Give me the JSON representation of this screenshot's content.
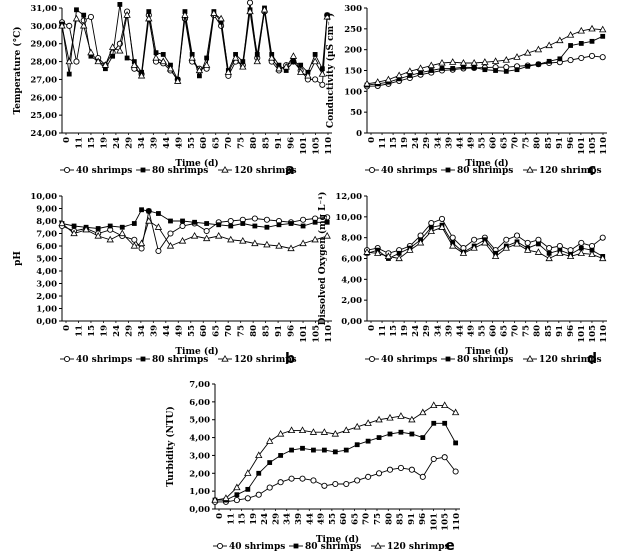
{
  "chart_data": [
    {
      "id": "a",
      "type": "line",
      "panel_label": "a",
      "xlabel": "Time (d)",
      "ylabel": "Temperature (°C)",
      "ylim": [
        24,
        31
      ],
      "ystep": 1,
      "ydecimals": 2,
      "xlim": [
        0,
        112
      ],
      "xticks": [
        "0",
        "11",
        "15",
        "19",
        "24",
        "29",
        "34",
        "39",
        "44",
        "49",
        "55",
        "60",
        "65",
        "70",
        "75",
        "80",
        "85",
        "91",
        "96",
        "101",
        "105",
        "110"
      ],
      "legend": [
        "40 shrimps",
        "80 shrimps",
        "120 shrimps"
      ],
      "series": [
        {
          "name": "40 shrimps",
          "marker": "circle",
          "x": [
            0,
            3,
            6,
            9,
            12,
            15,
            18,
            21,
            24,
            27,
            30,
            33,
            36,
            39,
            42,
            45,
            48,
            51,
            54,
            57,
            60,
            63,
            66,
            69,
            72,
            75,
            78,
            81,
            84,
            87,
            90,
            93,
            96,
            99,
            102,
            105,
            108,
            110
          ],
          "y": [
            30.2,
            30.0,
            28.0,
            30.3,
            30.5,
            28.2,
            27.8,
            28.5,
            29.0,
            30.8,
            27.6,
            27.3,
            30.6,
            28.0,
            27.9,
            27.5,
            27.0,
            30.4,
            28.0,
            27.6,
            27.6,
            30.6,
            30.0,
            27.2,
            28.0,
            27.8,
            31.3,
            28.2,
            30.8,
            28.0,
            27.5,
            27.8,
            28.0,
            27.5,
            27.0,
            27.0,
            26.7,
            30.6
          ]
        },
        {
          "name": "80 shrimps",
          "marker": "square",
          "x": [
            0,
            3,
            6,
            9,
            12,
            15,
            18,
            21,
            24,
            27,
            30,
            33,
            36,
            39,
            42,
            45,
            48,
            51,
            54,
            57,
            60,
            63,
            66,
            69,
            72,
            75,
            78,
            81,
            84,
            87,
            90,
            93,
            96,
            99,
            102,
            105,
            108,
            110
          ],
          "y": [
            30.1,
            27.3,
            30.9,
            30.6,
            28.3,
            28.0,
            27.6,
            28.3,
            31.2,
            28.2,
            28.0,
            27.4,
            30.8,
            28.5,
            28.4,
            27.8,
            27.0,
            30.8,
            28.4,
            27.2,
            28.2,
            30.8,
            30.2,
            27.5,
            28.4,
            28.0,
            30.9,
            28.4,
            31.0,
            28.4,
            27.8,
            27.5,
            28.0,
            27.8,
            27.4,
            28.4,
            27.6,
            30.6
          ]
        },
        {
          "name": "120 shrimps",
          "marker": "triangle",
          "x": [
            0,
            3,
            6,
            9,
            12,
            15,
            18,
            21,
            24,
            27,
            30,
            33,
            36,
            39,
            42,
            45,
            48,
            51,
            54,
            57,
            60,
            63,
            66,
            69,
            72,
            75,
            78,
            81,
            84,
            87,
            90,
            93,
            96,
            99,
            102,
            105,
            108,
            110
          ],
          "y": [
            30.0,
            28.0,
            30.4,
            30.0,
            28.5,
            28.0,
            27.8,
            28.8,
            28.6,
            30.6,
            27.8,
            27.2,
            30.4,
            28.2,
            28.0,
            27.6,
            26.9,
            30.6,
            28.2,
            27.5,
            27.8,
            30.7,
            30.4,
            27.4,
            28.2,
            27.7,
            30.8,
            28.0,
            30.9,
            28.2,
            27.6,
            27.7,
            28.3,
            27.4,
            27.2,
            28.0,
            27.3,
            30.5
          ]
        }
      ]
    },
    {
      "id": "c",
      "type": "line",
      "panel_label": "c",
      "xlabel": "Time (d)",
      "ylabel": "Conductivity (µS cm⁻¹)",
      "ylim": [
        0,
        300
      ],
      "ystep": 50,
      "ydecimals": 0,
      "xlim": [
        0,
        112
      ],
      "xticks": [
        "0",
        "11",
        "15",
        "19",
        "24",
        "29",
        "34",
        "39",
        "44",
        "49",
        "55",
        "60",
        "65",
        "70",
        "75",
        "80",
        "85",
        "91",
        "96",
        "101",
        "105",
        "110"
      ],
      "legend": [
        "40 shrimps",
        "80 shrimps",
        "120 shrimps"
      ],
      "series": [
        {
          "name": "40 shrimps",
          "marker": "circle",
          "x": [
            0,
            5,
            10,
            15,
            20,
            25,
            30,
            35,
            40,
            45,
            50,
            55,
            60,
            65,
            70,
            75,
            80,
            85,
            90,
            95,
            100,
            105,
            110
          ],
          "y": [
            112,
            113,
            118,
            125,
            132,
            140,
            145,
            150,
            152,
            155,
            156,
            157,
            158,
            158,
            160,
            162,
            165,
            168,
            170,
            175,
            180,
            185,
            182
          ]
        },
        {
          "name": "80 shrimps",
          "marker": "square",
          "x": [
            0,
            5,
            10,
            15,
            20,
            25,
            30,
            35,
            40,
            45,
            50,
            55,
            60,
            65,
            70,
            75,
            80,
            85,
            90,
            95,
            100,
            105,
            110
          ],
          "y": [
            115,
            118,
            122,
            130,
            138,
            145,
            150,
            155,
            155,
            158,
            157,
            152,
            150,
            148,
            152,
            160,
            165,
            172,
            178,
            210,
            215,
            220,
            232
          ]
        },
        {
          "name": "120 shrimps",
          "marker": "triangle",
          "x": [
            0,
            5,
            10,
            15,
            20,
            25,
            30,
            35,
            40,
            45,
            50,
            55,
            60,
            65,
            70,
            75,
            80,
            85,
            90,
            95,
            100,
            105,
            110
          ],
          "y": [
            118,
            122,
            128,
            138,
            148,
            155,
            162,
            168,
            170,
            168,
            168,
            170,
            172,
            175,
            182,
            192,
            200,
            210,
            222,
            235,
            245,
            250,
            248
          ]
        }
      ]
    },
    {
      "id": "b",
      "type": "line",
      "panel_label": "b",
      "xlabel": "Time (d)",
      "ylabel": "pH",
      "ylim": [
        0,
        10
      ],
      "ystep": 1,
      "ydecimals": 2,
      "xlim": [
        0,
        112
      ],
      "xticks": [
        "0",
        "11",
        "15",
        "19",
        "24",
        "29",
        "34",
        "39",
        "44",
        "49",
        "55",
        "60",
        "65",
        "70",
        "75",
        "80",
        "85",
        "91",
        "96",
        "101",
        "105",
        "110"
      ],
      "legend": [
        "40 shrimps",
        "80 shrimps",
        "120 shrimps"
      ],
      "series": [
        {
          "name": "40 shrimps",
          "marker": "circle",
          "x": [
            0,
            5,
            10,
            15,
            20,
            25,
            30,
            33,
            36,
            40,
            45,
            50,
            55,
            60,
            65,
            70,
            75,
            80,
            85,
            90,
            95,
            100,
            105,
            110
          ],
          "y": [
            7.6,
            7.2,
            7.4,
            7.0,
            7.3,
            6.8,
            6.5,
            5.8,
            8.8,
            5.6,
            7.0,
            7.6,
            7.8,
            7.2,
            7.9,
            8.0,
            8.1,
            8.2,
            8.1,
            8.0,
            7.9,
            8.1,
            8.2,
            8.3
          ]
        },
        {
          "name": "80 shrimps",
          "marker": "square",
          "x": [
            0,
            5,
            10,
            15,
            20,
            25,
            30,
            33,
            36,
            40,
            45,
            50,
            55,
            60,
            65,
            70,
            75,
            80,
            85,
            90,
            95,
            100,
            105,
            110
          ],
          "y": [
            7.8,
            7.6,
            7.5,
            7.4,
            7.6,
            7.5,
            7.8,
            8.9,
            8.8,
            8.6,
            8.0,
            8.0,
            7.9,
            7.8,
            7.7,
            7.6,
            7.8,
            7.6,
            7.5,
            7.7,
            7.8,
            7.6,
            7.9,
            7.9
          ]
        },
        {
          "name": "120 shrimps",
          "marker": "triangle",
          "x": [
            0,
            5,
            10,
            15,
            20,
            25,
            30,
            33,
            36,
            40,
            45,
            50,
            55,
            60,
            65,
            70,
            75,
            80,
            85,
            90,
            95,
            100,
            105,
            110
          ],
          "y": [
            7.8,
            7.0,
            7.3,
            6.8,
            6.5,
            7.0,
            6.0,
            6.2,
            8.0,
            7.5,
            6.0,
            6.4,
            6.8,
            6.6,
            6.8,
            6.5,
            6.4,
            6.2,
            6.1,
            6.0,
            5.8,
            6.2,
            6.5,
            6.8
          ]
        }
      ]
    },
    {
      "id": "d",
      "type": "line",
      "panel_label": "d",
      "xlabel": "Time (d)",
      "ylabel": "Dissolved Oxygen (mg L⁻¹)",
      "ylim": [
        0,
        12
      ],
      "ystep": 2,
      "ydecimals": 2,
      "xlim": [
        0,
        112
      ],
      "xticks": [
        "0",
        "11",
        "15",
        "19",
        "24",
        "29",
        "34",
        "39",
        "44",
        "49",
        "55",
        "60",
        "65",
        "70",
        "75",
        "80",
        "85",
        "91",
        "96",
        "101",
        "105",
        "110"
      ],
      "legend": [
        "40 shrimps",
        "80 shrimps",
        "120 shrimps"
      ],
      "series": [
        {
          "name": "40 shrimps",
          "marker": "circle",
          "x": [
            0,
            5,
            10,
            15,
            20,
            25,
            30,
            35,
            40,
            45,
            50,
            55,
            60,
            65,
            70,
            75,
            80,
            85,
            90,
            95,
            100,
            105,
            110
          ],
          "y": [
            6.8,
            7.0,
            6.5,
            6.8,
            7.2,
            8.2,
            9.4,
            9.8,
            8.0,
            7.0,
            7.8,
            8.0,
            6.8,
            7.8,
            8.2,
            7.5,
            7.8,
            7.0,
            7.2,
            6.8,
            7.5,
            7.2,
            8.0
          ]
        },
        {
          "name": "80 shrimps",
          "marker": "square",
          "x": [
            0,
            5,
            10,
            15,
            20,
            25,
            30,
            35,
            40,
            45,
            50,
            55,
            60,
            65,
            70,
            75,
            80,
            85,
            90,
            95,
            100,
            105,
            110
          ],
          "y": [
            6.5,
            6.8,
            6.0,
            6.5,
            7.0,
            7.8,
            9.0,
            9.2,
            7.5,
            6.6,
            7.2,
            7.8,
            6.5,
            7.2,
            7.6,
            7.0,
            7.4,
            6.5,
            6.8,
            6.4,
            7.0,
            6.8,
            6.2
          ]
        },
        {
          "name": "120 shrimps",
          "marker": "triangle",
          "x": [
            0,
            5,
            10,
            15,
            20,
            25,
            30,
            35,
            40,
            45,
            50,
            55,
            60,
            65,
            70,
            75,
            80,
            85,
            90,
            95,
            100,
            105,
            110
          ],
          "y": [
            6.6,
            6.5,
            6.2,
            6.0,
            6.8,
            7.5,
            8.6,
            9.0,
            7.2,
            6.5,
            7.0,
            7.5,
            6.2,
            7.0,
            7.4,
            6.8,
            6.6,
            6.0,
            6.5,
            6.2,
            6.5,
            6.4,
            6.0
          ]
        }
      ]
    },
    {
      "id": "e",
      "type": "line",
      "panel_label": "e",
      "xlabel": "Time (d)",
      "ylabel": "Turbidity (NTU)",
      "ylim": [
        0,
        7
      ],
      "ystep": 1,
      "ydecimals": 2,
      "xlim": [
        0,
        112
      ],
      "xticks": [
        "0",
        "11",
        "15",
        "19",
        "24",
        "29",
        "34",
        "39",
        "44",
        "49",
        "55",
        "60",
        "65",
        "70",
        "75",
        "80",
        "85",
        "91",
        "96",
        "101",
        "105",
        "110"
      ],
      "legend": [
        "40 shrimps",
        "80 shrimps",
        "120 shrimps"
      ],
      "series": [
        {
          "name": "40 shrimps",
          "marker": "circle",
          "x": [
            0,
            5,
            10,
            15,
            20,
            25,
            30,
            35,
            40,
            45,
            50,
            55,
            60,
            65,
            70,
            75,
            80,
            85,
            90,
            95,
            100,
            105,
            110
          ],
          "y": [
            0.4,
            0.4,
            0.5,
            0.6,
            0.8,
            1.2,
            1.5,
            1.7,
            1.7,
            1.6,
            1.3,
            1.4,
            1.4,
            1.6,
            1.8,
            2.0,
            2.2,
            2.3,
            2.2,
            1.8,
            2.8,
            2.9,
            2.1
          ]
        },
        {
          "name": "80 shrimps",
          "marker": "square",
          "x": [
            0,
            5,
            10,
            15,
            20,
            25,
            30,
            35,
            40,
            45,
            50,
            55,
            60,
            65,
            70,
            75,
            80,
            85,
            90,
            95,
            100,
            105,
            110
          ],
          "y": [
            0.5,
            0.5,
            0.8,
            1.1,
            2.0,
            2.6,
            3.0,
            3.3,
            3.4,
            3.3,
            3.3,
            3.2,
            3.3,
            3.6,
            3.8,
            4.0,
            4.2,
            4.3,
            4.2,
            4.0,
            4.8,
            4.8,
            3.7
          ]
        },
        {
          "name": "120 shrimps",
          "marker": "triangle",
          "x": [
            0,
            5,
            10,
            15,
            20,
            25,
            30,
            35,
            40,
            45,
            50,
            55,
            60,
            65,
            70,
            75,
            80,
            85,
            90,
            95,
            100,
            105,
            110
          ],
          "y": [
            0.5,
            0.6,
            1.2,
            2.0,
            3.0,
            3.8,
            4.2,
            4.4,
            4.4,
            4.3,
            4.3,
            4.2,
            4.4,
            4.6,
            4.8,
            5.0,
            5.1,
            5.2,
            5.0,
            5.4,
            5.8,
            5.8,
            5.4
          ]
        }
      ]
    }
  ]
}
